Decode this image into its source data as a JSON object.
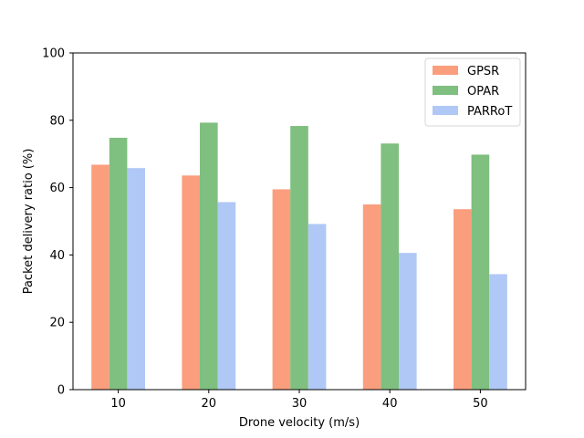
{
  "chart_data": {
    "type": "bar",
    "categories": [
      "10",
      "20",
      "30",
      "40",
      "50"
    ],
    "series": [
      {
        "name": "GPSR",
        "color": "#fa9e7d",
        "values": [
          66.8,
          63.6,
          59.5,
          55.0,
          53.6
        ]
      },
      {
        "name": "OPAR",
        "color": "#7fbf7f",
        "values": [
          74.8,
          79.3,
          78.3,
          73.1,
          69.8
        ]
      },
      {
        "name": "PARRoT",
        "color": "#b0c8f5",
        "values": [
          65.8,
          55.7,
          49.2,
          40.6,
          34.3
        ]
      }
    ],
    "title": "",
    "xlabel": "Drone velocity (m/s)",
    "ylabel": "Packet delivery ratio (%)",
    "ylim": [
      0,
      100
    ],
    "yticks": [
      0,
      20,
      40,
      60,
      80,
      100
    ],
    "grid": false,
    "legend_position": "top-right"
  }
}
